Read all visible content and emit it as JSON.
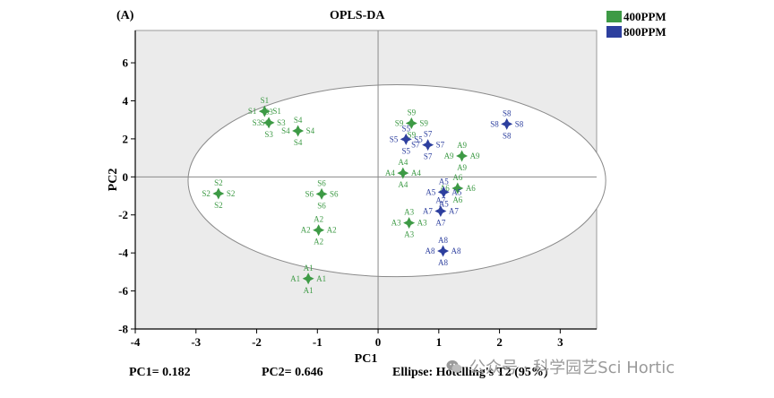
{
  "panel_label": "(A)",
  "colors": {
    "s400": "#3d9a45",
    "s800": "#2d3f9e"
  },
  "footer": {
    "pc1": "PC1= 0.182",
    "pc2": "PC2= 0.646",
    "ellipse": "Ellipse: Hotelling's T2 (95%)"
  },
  "watermark": {
    "text": "公众号 · 科学园艺Sci Hortic",
    "icon": "wechat-icon"
  },
  "chart_data": {
    "type": "scatter",
    "title": "OPLS-DA",
    "xlabel": "PC1",
    "ylabel": "PC2",
    "xlim": [
      -4,
      3.6
    ],
    "ylim": [
      -8,
      7.7
    ],
    "xticks": [
      -4,
      -3,
      -2,
      -1,
      0,
      1,
      2,
      3
    ],
    "yticks": [
      -8,
      -6,
      -4,
      -2,
      0,
      2,
      4,
      6
    ],
    "grid": false,
    "legend_position": "top-right",
    "ellipse": {
      "cx": 0.31,
      "cy": -0.2,
      "rx": 3.44,
      "ry": 5.05
    },
    "series": [
      {
        "name": "400PPM",
        "color": "#3d9a45",
        "points": [
          {
            "label": "S1",
            "x": -1.87,
            "y": 3.45
          },
          {
            "label": "S3",
            "x": -1.8,
            "y": 2.85
          },
          {
            "label": "S4",
            "x": -1.32,
            "y": 2.42
          },
          {
            "label": "S2",
            "x": -2.63,
            "y": -0.88
          },
          {
            "label": "S6",
            "x": -0.93,
            "y": -0.9
          },
          {
            "label": "A2",
            "x": -0.98,
            "y": -2.8
          },
          {
            "label": "A1",
            "x": -1.15,
            "y": -5.35
          },
          {
            "label": "S9",
            "x": 0.55,
            "y": 2.82
          },
          {
            "label": "A4",
            "x": 0.41,
            "y": 0.2
          },
          {
            "label": "A9",
            "x": 1.38,
            "y": 1.1
          },
          {
            "label": "A6",
            "x": 1.31,
            "y": -0.6
          },
          {
            "label": "A3",
            "x": 0.51,
            "y": -2.42
          }
        ]
      },
      {
        "name": "800PPM",
        "color": "#2d3f9e",
        "points": [
          {
            "label": "S8",
            "x": 2.12,
            "y": 2.78
          },
          {
            "label": "S5",
            "x": 0.46,
            "y": 1.98
          },
          {
            "label": "S7",
            "x": 0.82,
            "y": 1.68
          },
          {
            "label": "A5",
            "x": 1.08,
            "y": -0.8
          },
          {
            "label": "A7",
            "x": 1.03,
            "y": -1.8
          },
          {
            "label": "A8",
            "x": 1.07,
            "y": -3.9
          }
        ]
      }
    ]
  }
}
